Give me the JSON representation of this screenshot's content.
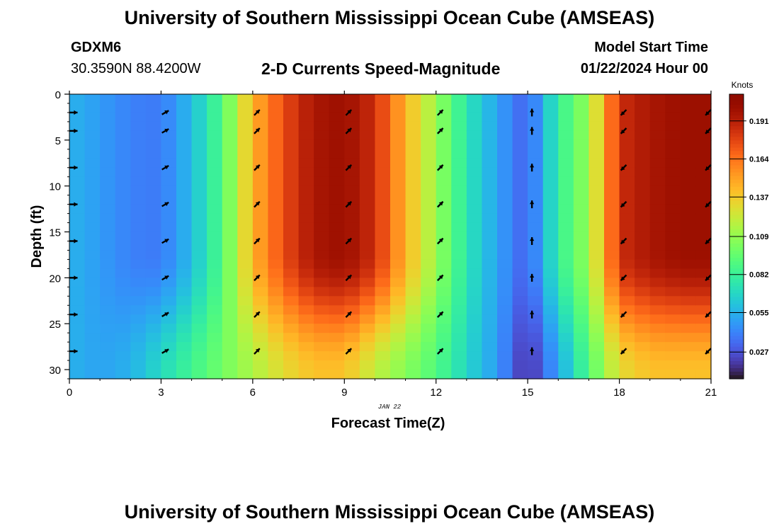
{
  "header": {
    "title": "University of Southern Mississippi Ocean Cube (AMSEAS)",
    "station_id": "GDXM6",
    "station_coords": "30.3590N  88.4200W",
    "chart_title": "2-D Currents Speed-Magnitude",
    "model_start_label": "Model Start Time",
    "model_start_value": "01/22/2024 Hour 00"
  },
  "footer": {
    "title": "University of Southern Mississippi Ocean Cube (AMSEAS)"
  },
  "chart_data": {
    "type": "heatmap",
    "title": "2-D Currents Speed-Magnitude",
    "xlabel": "Forecast Time(Z)",
    "ylabel": "Depth (ft)",
    "x_date_label": "JAN 22",
    "xlim": [
      0,
      21
    ],
    "ylim": [
      0,
      31
    ],
    "xticks": [
      0,
      3,
      6,
      9,
      12,
      15,
      18,
      21
    ],
    "yticks": [
      0,
      5,
      10,
      15,
      20,
      25,
      30
    ],
    "colorbar": {
      "unit": "Knots",
      "range": [
        0.008,
        0.21
      ],
      "ticks": [
        0.027,
        0.055,
        0.082,
        0.109,
        0.137,
        0.164,
        0.191
      ]
    },
    "speed_profile_by_hour": {
      "hours": [
        0,
        1,
        2,
        3,
        4,
        5,
        6,
        7,
        8,
        9,
        10,
        11,
        12,
        13,
        14,
        15,
        16,
        17,
        18,
        19,
        20,
        21
      ],
      "surface_knots": [
        0.055,
        0.048,
        0.04,
        0.038,
        0.058,
        0.09,
        0.145,
        0.175,
        0.195,
        0.2,
        0.185,
        0.145,
        0.11,
        0.075,
        0.05,
        0.03,
        0.08,
        0.11,
        0.185,
        0.195,
        0.2,
        0.2
      ],
      "bottom_knots": [
        0.055,
        0.05,
        0.055,
        0.07,
        0.085,
        0.1,
        0.115,
        0.13,
        0.14,
        0.14,
        0.12,
        0.105,
        0.09,
        0.068,
        0.048,
        0.015,
        0.05,
        0.09,
        0.13,
        0.14,
        0.14,
        0.14
      ]
    },
    "arrows": {
      "hours": [
        0,
        3,
        6,
        9,
        12,
        15,
        18,
        21
      ],
      "depths_ft": [
        2,
        4,
        8,
        12,
        16,
        20,
        24,
        28
      ],
      "direction_deg_by_hour": [
        90,
        60,
        45,
        45,
        45,
        0,
        225,
        225
      ]
    }
  }
}
